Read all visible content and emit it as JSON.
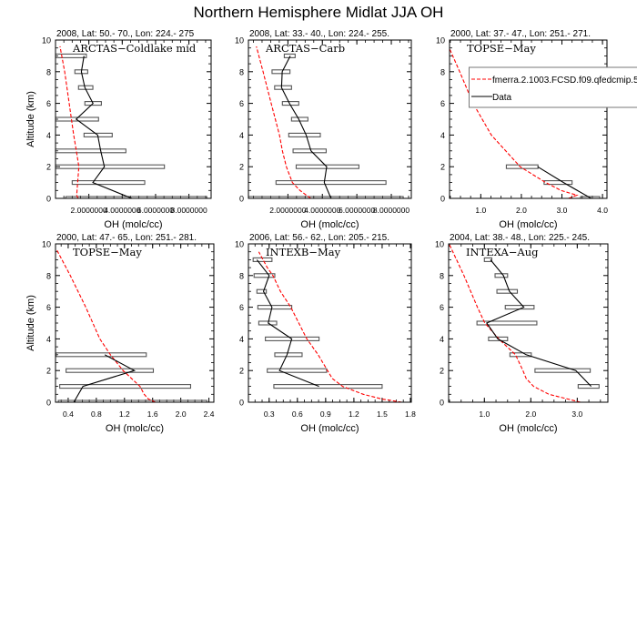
{
  "title": "Northern Hemisphere Midlat JJA OH",
  "colors": {
    "model": "#ff0000",
    "data": "#000000",
    "range_box": "#555555"
  },
  "chart_data": [
    {
      "type": "line",
      "title": "2008, Lat:  50.- 70., Lon: 224.- 275",
      "campaign": "ARCTAS−Coldlake mid",
      "xlabel": "OH (molc/cc)",
      "ylabel": "Altitude (km)",
      "xlim": [
        0,
        9.33
      ],
      "ylim": [
        0,
        10
      ],
      "xticks": [
        2,
        4,
        6,
        8
      ],
      "xticklabels": [
        "2.0000000",
        "4.0000000",
        "6.0000000",
        "8.0000000"
      ],
      "yticks": [
        0,
        2,
        4,
        6,
        8,
        10
      ],
      "yticklabels": [
        "0",
        "2",
        "4",
        "6",
        "8",
        "10"
      ],
      "model": {
        "x": [
          1.35,
          1.27,
          1.4,
          1.25,
          1.09,
          0.82,
          0.55,
          0.27
        ],
        "y": [
          0,
          0.2,
          2,
          3,
          4,
          6,
          8,
          9.6
        ]
      },
      "data": {
        "x": [
          4.58,
          2.24,
          2.93,
          2.71,
          2.53,
          1.24,
          2.25,
          1.76,
          1.55,
          1.71
        ],
        "y": [
          0,
          1,
          2,
          3,
          4,
          5,
          6,
          7,
          8,
          9
        ]
      },
      "ranges": [
        [
          0.62,
          9.07,
          0
        ],
        [
          1.0,
          5.35,
          1
        ],
        [
          0,
          6.53,
          2
        ],
        [
          0,
          4.22,
          3
        ],
        [
          1.71,
          3.4,
          4
        ],
        [
          0,
          2.58,
          5
        ],
        [
          1.76,
          2.75,
          6
        ],
        [
          1.38,
          2.24,
          7
        ],
        [
          1.16,
          1.93,
          8
        ],
        [
          0,
          1.85,
          9
        ]
      ]
    },
    {
      "type": "line",
      "title": "2008, Lat:  33.- 40., Lon: 224.- 255.",
      "campaign": "ARCTAS−Carb",
      "xlabel": "OH (molc/cc)",
      "ylabel": "",
      "xlim": [
        -0.29,
        9.16
      ],
      "ylim": [
        0,
        10
      ],
      "xticks": [
        2,
        4,
        6,
        8
      ],
      "xticklabels": [
        "2.0000000",
        "4.0000000",
        "6.0000000",
        "8.0000000"
      ],
      "yticks": [
        0,
        2,
        4,
        6,
        8,
        10
      ],
      "yticklabels": [
        "0",
        "2",
        "4",
        "6",
        "8",
        "10"
      ],
      "model": {
        "x": [
          3.32,
          2.7,
          2.26,
          1.91,
          1.68,
          1.51,
          1.03,
          0.56,
          0.17
        ],
        "y": [
          0,
          0.5,
          1,
          2,
          3,
          4,
          6,
          8,
          9.6
        ]
      },
      "data": {
        "x": [
          4.5,
          4.11,
          4.25,
          3.34,
          3.06,
          2.63,
          2.09,
          1.63,
          1.67,
          2.14
        ],
        "y": [
          0,
          1,
          2,
          3,
          4,
          5,
          6,
          7,
          8,
          9
        ]
      },
      "ranges": [
        [
          -0.29,
          8.69,
          0
        ],
        [
          1.31,
          7.69,
          1
        ],
        [
          2.48,
          6.12,
          2
        ],
        [
          2.3,
          4.22,
          3
        ],
        [
          2.05,
          3.88,
          4
        ],
        [
          2.21,
          3.16,
          5
        ],
        [
          1.68,
          2.63,
          6
        ],
        [
          1.23,
          2.21,
          7
        ],
        [
          1.08,
          2.12,
          8
        ],
        [
          1.79,
          2.42,
          9
        ]
      ]
    },
    {
      "type": "line",
      "title": "2000, Lat: 37.- 47., Lon: 251.- 271.",
      "campaign": "TOPSE−May",
      "xlabel": "OH (molc/cc)",
      "ylabel": "",
      "xlim": [
        0.23,
        4.11
      ],
      "ylim": [
        0,
        10
      ],
      "xticks": [
        1,
        2,
        3,
        4
      ],
      "xticklabels": [
        "1.0",
        "2.0",
        "3.0",
        "4.0"
      ],
      "yticks": [
        0,
        2,
        4,
        6,
        8,
        10
      ],
      "yticklabels": [
        "0",
        "2",
        "4",
        "6",
        "8",
        "10"
      ],
      "model": {
        "x": [
          3.16,
          3.37,
          2.98,
          2.6,
          1.97,
          1.26,
          0.81,
          0.48,
          0.24
        ],
        "y": [
          0,
          0.2,
          0.5,
          1,
          2,
          4,
          6,
          8,
          9.4
        ]
      },
      "data": {
        "x": [
          3.72,
          3.04,
          2.4
        ],
        "y": [
          0,
          1,
          2
        ]
      },
      "ranges": [
        [
          3.46,
          3.93,
          0
        ],
        [
          2.56,
          3.25,
          1
        ],
        [
          1.63,
          2.41,
          2
        ]
      ],
      "legend": {
        "model_label": "fmerra.2.1003.FCSD.f09.qfedcmip.5",
        "data_label": "Data",
        "placement": "upper-right, clipped at image edge"
      }
    },
    {
      "type": "line",
      "title": "2000, Lat: 47.- 65., Lon: 251.- 281.",
      "campaign": "TOPSE−May",
      "xlabel": "OH (molc/cc)",
      "ylabel": "Altitude (km)",
      "xlim": [
        0.22,
        2.47
      ],
      "ylim": [
        0,
        10
      ],
      "xticks": [
        0.4,
        0.8,
        1.2,
        1.6,
        2.0,
        2.4
      ],
      "xticklabels": [
        "0.4",
        "0.8",
        "1.2",
        "1.6",
        "2.0",
        "2.4"
      ],
      "yticks": [
        0,
        2,
        4,
        6,
        8,
        10
      ],
      "yticklabels": [
        "0",
        "2",
        "4",
        "6",
        "8",
        "10"
      ],
      "model": {
        "x": [
          1.64,
          1.54,
          1.48,
          1.42,
          1.18,
          1.0,
          0.85,
          0.65,
          0.43,
          0.24
        ],
        "y": [
          0,
          0.2,
          0.5,
          1,
          2,
          3,
          4,
          6,
          8,
          9.6
        ]
      },
      "data": {
        "x": [
          0.48,
          0.61,
          1.34,
          0.92
        ],
        "y": [
          0,
          1,
          2,
          3
        ]
      },
      "ranges": [
        [
          0.26,
          2.37,
          0
        ],
        [
          0.28,
          2.14,
          1
        ],
        [
          0.37,
          1.61,
          2
        ],
        [
          0.23,
          1.51,
          3
        ]
      ]
    },
    {
      "type": "line",
      "title": "2006, Lat: 56.- 62., Lon: 205.- 215.",
      "campaign": "INTEXB−May",
      "xlabel": "OH (molc/cc)",
      "ylabel": "",
      "xlim": [
        0.08,
        1.81
      ],
      "ylim": [
        0,
        10
      ],
      "xticks": [
        0.3,
        0.6,
        0.9,
        1.2,
        1.5,
        1.8
      ],
      "xticklabels": [
        "0.3",
        "0.6",
        "0.9",
        "1.2",
        "1.5",
        "1.8"
      ],
      "yticks": [
        0,
        2,
        4,
        6,
        8,
        10
      ],
      "yticklabels": [
        "0",
        "2",
        "4",
        "6",
        "8",
        "10"
      ],
      "model": {
        "x": [
          1.71,
          1.5,
          1.3,
          1.08,
          0.97,
          0.92,
          0.82,
          0.7,
          0.53,
          0.42,
          0.34,
          0.28,
          0.19
        ],
        "y": [
          0,
          0.2,
          0.5,
          1,
          1.5,
          2,
          3,
          4,
          6,
          7,
          8,
          8.5,
          9.5
        ]
      },
      "data": {
        "x": [
          0.83,
          0.41,
          0.49,
          0.54,
          0.29,
          0.33,
          0.24,
          0.3,
          0.17
        ],
        "y": [
          1,
          2,
          3,
          4,
          5,
          6,
          7,
          8,
          9
        ]
      },
      "ranges": [
        [
          0.35,
          1.5,
          1
        ],
        [
          0.28,
          0.91,
          2
        ],
        [
          0.36,
          0.65,
          3
        ],
        [
          0.26,
          0.83,
          4
        ],
        [
          0.19,
          0.38,
          5
        ],
        [
          0.18,
          0.54,
          6
        ],
        [
          0.17,
          0.27,
          7
        ],
        [
          0.14,
          0.36,
          8
        ],
        [
          0.13,
          0.33,
          9
        ]
      ]
    },
    {
      "type": "line",
      "title": "2004, Lat: 38.- 48., Lon: 225.- 245.",
      "campaign": "INTEXA−Aug",
      "xlabel": "OH (molc/cc)",
      "ylabel": "",
      "xlim": [
        0.23,
        3.66
      ],
      "ylim": [
        0,
        10
      ],
      "xticks": [
        1,
        2,
        3
      ],
      "xticklabels": [
        "1.0",
        "2.0",
        "3.0"
      ],
      "yticks": [
        0,
        2,
        4,
        6,
        8,
        10
      ],
      "yticklabels": [
        "0",
        "2",
        "4",
        "6",
        "8",
        "10"
      ],
      "model": {
        "x": [
          3.07,
          2.39,
          2.06,
          1.9,
          1.83,
          1.67,
          1.31,
          1.01,
          0.85,
          0.56,
          0.24
        ],
        "y": [
          0,
          0.5,
          1,
          1.5,
          2,
          3,
          4,
          5,
          6,
          8,
          10
        ]
      },
      "data": {
        "x": [
          3.3,
          2.97,
          1.9,
          1.29,
          1.05,
          1.85,
          1.54,
          1.41,
          1.13
        ],
        "y": [
          1,
          2,
          3,
          4,
          5,
          6,
          7,
          8,
          9
        ]
      },
      "ranges": [
        [
          3.02,
          3.47,
          1
        ],
        [
          2.09,
          3.28,
          2
        ],
        [
          1.55,
          2.01,
          3
        ],
        [
          1.09,
          1.5,
          4
        ],
        [
          0.84,
          2.13,
          5
        ],
        [
          1.45,
          2.07,
          6
        ],
        [
          1.27,
          1.71,
          7
        ],
        [
          1.23,
          1.5,
          8
        ],
        [
          1.0,
          1.16,
          9
        ]
      ]
    }
  ]
}
